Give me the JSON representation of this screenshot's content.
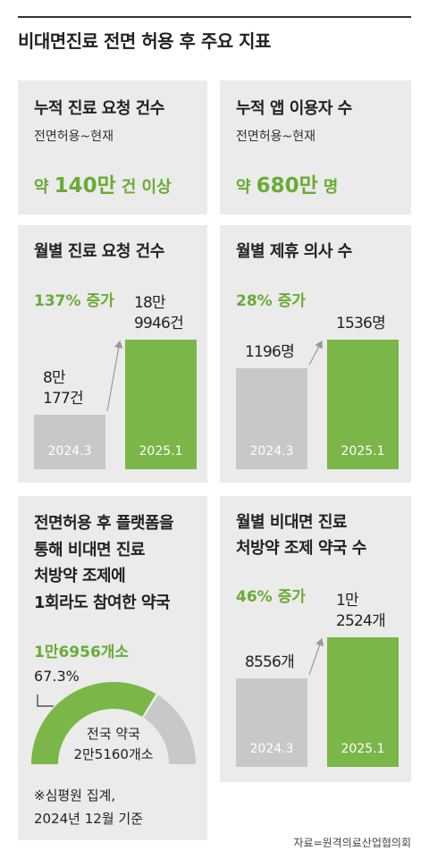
{
  "title": "비대면진료 전면 허용 후 주요 지표",
  "cards": [
    {
      "title": "누적 진료 요청 건수",
      "subtitle": "전면허용~현재",
      "prefix": "약",
      "value": "140만",
      "suffix": "건 이상"
    },
    {
      "title": "누적 앱 이용자 수",
      "subtitle": "전면허용~현재",
      "prefix": "약",
      "value": "680만",
      "suffix": "명"
    }
  ],
  "chart_data": [
    {
      "type": "bar",
      "title": "월별 진료 요청 건수",
      "annotation": "137% 증가",
      "categories": [
        "2024.3",
        "2025.1"
      ],
      "values": [
        80177,
        189946
      ],
      "value_labels": [
        "8만\n177건",
        "18만\n9946건"
      ],
      "colors": [
        "#c8c8c8",
        "#7ab648"
      ]
    },
    {
      "type": "bar",
      "title": "월별 제휴 의사 수",
      "annotation": "28% 증가",
      "categories": [
        "2024.3",
        "2025.1"
      ],
      "values": [
        1196,
        1536
      ],
      "value_labels": [
        "1196명",
        "1536명"
      ],
      "colors": [
        "#c8c8c8",
        "#7ab648"
      ]
    },
    {
      "type": "gauge",
      "title": "전면허용 후 플랫폼을\n통해 비대면 진료\n처방약 조제에\n1회라도 참여한 약국",
      "annotation": "1만6956개소",
      "value": 67.3,
      "value_label": "67.3%",
      "total_label": "전국 약국\n2만5160개소",
      "note": "※심평원 집계,\n2024년 12월 기준",
      "colors": [
        "#7ab648",
        "#c8c8c8"
      ]
    },
    {
      "type": "bar",
      "title": "월별 비대면 진료\n처방약 조제 약국 수",
      "annotation": "46% 증가",
      "categories": [
        "2024.3",
        "2025.1"
      ],
      "values": [
        8556,
        12524
      ],
      "value_labels": [
        "8556개",
        "1만\n2524개"
      ],
      "colors": [
        "#c8c8c8",
        "#7ab648"
      ]
    }
  ],
  "source": "자료=원격의료산업협의회"
}
